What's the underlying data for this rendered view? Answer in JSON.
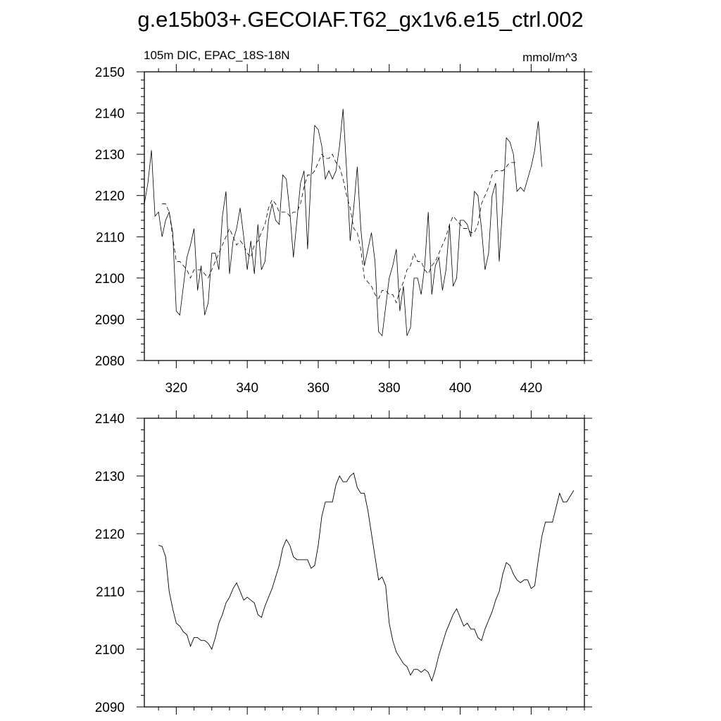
{
  "title": "g.e15b03+.GECOIAF.T62_gx1v6.e15_ctrl.002",
  "chart_data": [
    {
      "type": "line",
      "subtitle_left": "105m DIC, EPAC_18S-18N",
      "subtitle_right": "mmol/m^3",
      "xlim": [
        311,
        435
      ],
      "ylim": [
        2080,
        2150
      ],
      "x_ticks": [
        320,
        340,
        360,
        380,
        400,
        420
      ],
      "y_ticks": [
        2080,
        2090,
        2100,
        2110,
        2120,
        2130,
        2140,
        2150
      ],
      "x_start": 311,
      "series": [
        {
          "style": "solid",
          "values": [
            2118,
            2123,
            2131,
            2115,
            2116,
            2110,
            2114,
            2116,
            2111,
            2092,
            2091,
            2098,
            2105,
            2108,
            2112,
            2097,
            2103,
            2091,
            2094,
            2106,
            2106,
            2102,
            2115,
            2121,
            2101,
            2109,
            2112,
            2117,
            2110,
            2102,
            2109,
            2101,
            2113,
            2102,
            2104,
            2114,
            2118,
            2114,
            2113,
            2125,
            2124,
            2116,
            2105,
            2114,
            2123,
            2126,
            2107,
            2125,
            2137,
            2136,
            2132,
            2124,
            2126,
            2124,
            2126,
            2132,
            2141,
            2126,
            2109,
            2117,
            2127,
            2112,
            2103,
            2107,
            2111,
            2104,
            2087,
            2086,
            2093,
            2100,
            2103,
            2107,
            2092,
            2098,
            2086,
            2088,
            2100,
            2100,
            2096,
            2103,
            2116,
            2096,
            2103,
            2105,
            2097,
            2102,
            2113,
            2098,
            2100,
            2114,
            2114,
            2113,
            2110,
            2121,
            2120,
            2112,
            2102,
            2106,
            2120,
            2123,
            2104,
            2118,
            2134,
            2133,
            2130,
            2121,
            2122,
            2121,
            2124,
            2127,
            2131,
            2138,
            2127
          ]
        },
        {
          "style": "dashed",
          "values": [
            null,
            null,
            null,
            null,
            null,
            2118,
            2118,
            2116,
            2110,
            2104,
            2104,
            2103,
            2102,
            2100,
            2102,
            2102,
            2102,
            2101,
            2100,
            2102,
            2104,
            2106,
            2108,
            2110,
            2112,
            2110,
            2108,
            2109,
            2108,
            2106,
            2105,
            2108,
            2109,
            2111,
            2113,
            2117,
            2119,
            2118,
            2116,
            2116,
            2116,
            2115,
            2116,
            2116,
            2118,
            2122,
            2125,
            2125,
            2126,
            2128,
            2130,
            2129,
            2129,
            2130,
            2128,
            2127,
            2124,
            2120,
            2117,
            2112,
            2111,
            2107,
            2100,
            2099,
            2098,
            2096,
            2095,
            2097,
            2097,
            2096,
            2096,
            2094,
            2097,
            2099,
            2102,
            2103,
            2106,
            2104,
            2104,
            2102,
            2101,
            2103,
            2104,
            2106,
            2108,
            2110,
            2113,
            2115,
            2114,
            2113,
            2112,
            2112,
            2111,
            2111,
            2113,
            2118,
            2120,
            2122,
            2125,
            2126,
            2126,
            2126,
            2127,
            2128,
            2128,
            2128,
            null,
            null,
            null,
            null,
            null,
            null,
            null
          ]
        }
      ]
    },
    {
      "type": "line",
      "xlim": [
        311,
        435
      ],
      "ylim": [
        2090,
        2140
      ],
      "x_ticks": [
        320,
        340,
        360,
        380,
        400,
        420
      ],
      "y_ticks": [
        2090,
        2100,
        2110,
        2120,
        2130,
        2140
      ],
      "x_start": 315,
      "series": [
        {
          "style": "solid",
          "values": [
            2118,
            2117.8,
            2116,
            2110,
            2107,
            2104.5,
            2104,
            2103,
            2102.5,
            2100.5,
            2102,
            2102,
            2101.5,
            2101.5,
            2101,
            2100,
            2102,
            2104.5,
            2106,
            2108,
            2109,
            2110.5,
            2111.5,
            2110,
            2108.5,
            2109,
            2108.5,
            2108,
            2106,
            2105.5,
            2107.5,
            2109,
            2110.5,
            2112.5,
            2114.5,
            2117.5,
            2119,
            2118,
            2116,
            2115.5,
            2115.5,
            2115.5,
            2115.5,
            2114,
            2114.5,
            2118,
            2123,
            2125.5,
            2125.5,
            2125.5,
            2128.5,
            2130,
            2129,
            2129,
            2130,
            2130.5,
            2128,
            2127,
            2127,
            2124,
            2120,
            2116,
            2112,
            2112.5,
            2111,
            2104.5,
            2101.5,
            2099.5,
            2098.5,
            2097.5,
            2097,
            2095.5,
            2096.5,
            2096.5,
            2096,
            2096.5,
            2096,
            2094.5,
            2096.5,
            2099,
            2101,
            2103,
            2104.5,
            2106,
            2107,
            2105.5,
            2104,
            2104.5,
            2103.5,
            2103.5,
            2102,
            2101.5,
            2103.5,
            2105,
            2106.5,
            2108.5,
            2110,
            2113,
            2115,
            2114.5,
            2113,
            2112,
            2111.5,
            2112,
            2112,
            2110.5,
            2111,
            2115.5,
            2119.5,
            2122,
            2122,
            2122,
            2124.5,
            2127,
            2125.5,
            2125.5,
            2126.5,
            2127.5
          ]
        }
      ]
    }
  ]
}
